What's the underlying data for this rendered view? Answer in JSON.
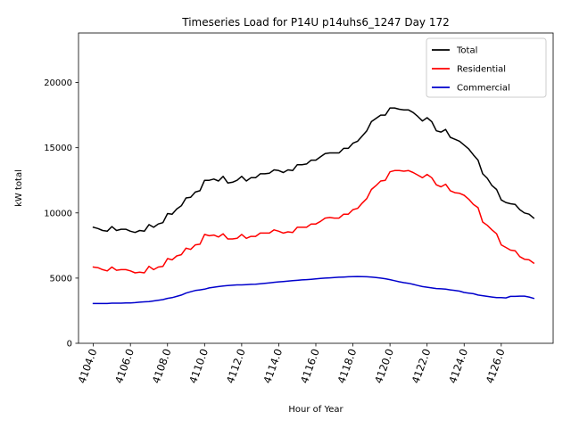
{
  "chart_data": {
    "type": "line",
    "title": "Timeseries Load for P14U p14uhs6_1247  Day 172",
    "xlabel": "Hour of Year",
    "ylabel": "kW total",
    "xlim": [
      4103.2,
      4128.8
    ],
    "ylim": [
      0,
      23800
    ],
    "x_ticks": [
      4104,
      4106,
      4108,
      4110,
      4112,
      4114,
      4116,
      4118,
      4120,
      4122,
      4124,
      4126
    ],
    "x_tick_labels": [
      "4104.0",
      "4106.0",
      "4108.0",
      "4110.0",
      "4112.0",
      "4114.0",
      "4116.0",
      "4118.0",
      "4120.0",
      "4122.0",
      "4124.0",
      "4126.0"
    ],
    "y_ticks": [
      0,
      5000,
      10000,
      15000,
      20000
    ],
    "y_tick_labels": [
      "0",
      "5000",
      "10000",
      "15000",
      "20000"
    ],
    "grid": false,
    "legend_position": "top-right",
    "x_start": 4104.0,
    "x_step": 0.25,
    "series": [
      {
        "name": "Total",
        "color": "#000000",
        "values": [
          8900,
          8800,
          8650,
          8600,
          8950,
          8650,
          8750,
          8750,
          8600,
          8500,
          8650,
          8600,
          9100,
          8900,
          9150,
          9250,
          9950,
          9900,
          10300,
          10550,
          11150,
          11200,
          11600,
          11700,
          12500,
          12500,
          12600,
          12450,
          12800,
          12300,
          12350,
          12500,
          12800,
          12450,
          12700,
          12700,
          13000,
          13000,
          13050,
          13300,
          13250,
          13100,
          13300,
          13250,
          13700,
          13700,
          13750,
          14050,
          14050,
          14300,
          14550,
          14600,
          14600,
          14600,
          14950,
          14950,
          15350,
          15500,
          15900,
          16300,
          17000,
          17250,
          17500,
          17500,
          18050,
          18050,
          17950,
          17900,
          17900,
          17700,
          17400,
          17050,
          17300,
          17000,
          16300,
          16200,
          16400,
          15800,
          15650,
          15500,
          15200,
          14900,
          14450,
          14050,
          13000,
          12650,
          12100,
          11800,
          11000,
          10800,
          10700,
          10650,
          10250,
          10000,
          9900,
          9600
        ]
      },
      {
        "name": "Residential",
        "color": "#ff0000",
        "values": [
          5850,
          5800,
          5650,
          5550,
          5850,
          5600,
          5650,
          5650,
          5550,
          5400,
          5450,
          5400,
          5900,
          5650,
          5850,
          5900,
          6500,
          6400,
          6700,
          6800,
          7300,
          7200,
          7550,
          7600,
          8350,
          8250,
          8300,
          8150,
          8400,
          8000,
          8000,
          8050,
          8350,
          8050,
          8200,
          8200,
          8450,
          8450,
          8450,
          8700,
          8600,
          8450,
          8550,
          8500,
          8900,
          8900,
          8900,
          9150,
          9150,
          9350,
          9600,
          9650,
          9600,
          9600,
          9900,
          9900,
          10250,
          10350,
          10750,
          11100,
          11800,
          12100,
          12450,
          12500,
          13150,
          13250,
          13250,
          13200,
          13250,
          13100,
          12900,
          12700,
          12950,
          12700,
          12150,
          12000,
          12200,
          11700,
          11550,
          11500,
          11350,
          11050,
          10650,
          10400,
          9300,
          9050,
          8700,
          8400,
          7550,
          7350,
          7150,
          7100,
          6650,
          6450,
          6400,
          6150
        ]
      },
      {
        "name": "Commercial",
        "color": "#0000cc",
        "values": [
          3050,
          3050,
          3050,
          3050,
          3080,
          3080,
          3080,
          3100,
          3100,
          3120,
          3150,
          3180,
          3200,
          3250,
          3300,
          3350,
          3450,
          3500,
          3600,
          3700,
          3850,
          3950,
          4050,
          4100,
          4150,
          4250,
          4300,
          4350,
          4400,
          4430,
          4450,
          4480,
          4480,
          4500,
          4520,
          4530,
          4560,
          4600,
          4640,
          4680,
          4710,
          4740,
          4770,
          4800,
          4830,
          4860,
          4880,
          4910,
          4940,
          4970,
          5000,
          5020,
          5050,
          5070,
          5080,
          5100,
          5110,
          5120,
          5110,
          5100,
          5080,
          5050,
          5000,
          4950,
          4880,
          4800,
          4720,
          4650,
          4600,
          4520,
          4430,
          4350,
          4300,
          4250,
          4200,
          4180,
          4150,
          4100,
          4050,
          4000,
          3900,
          3850,
          3800,
          3700,
          3650,
          3600,
          3550,
          3500,
          3500,
          3480,
          3600,
          3600,
          3620,
          3620,
          3550,
          3450
        ]
      }
    ]
  }
}
